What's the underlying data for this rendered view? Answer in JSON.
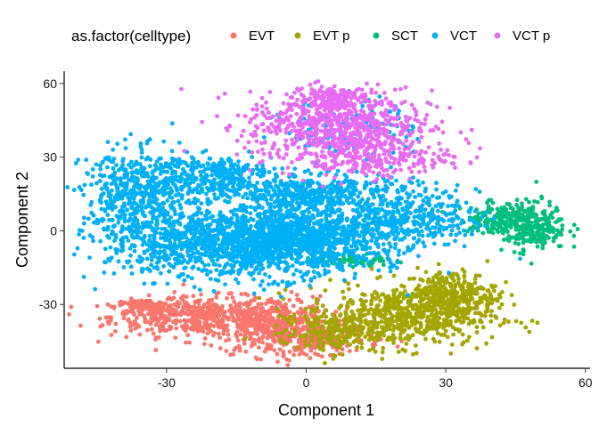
{
  "chart_data": {
    "type": "scatter",
    "title": "",
    "xlabel": "Component 1",
    "ylabel": "Component 2",
    "xlim": [
      -52,
      61
    ],
    "ylim": [
      -56,
      65
    ],
    "xticks": [
      -30,
      0,
      30,
      60
    ],
    "yticks": [
      -30,
      0,
      30,
      60
    ],
    "xtick_labels": [
      "-30",
      "0",
      "30",
      "60"
    ],
    "ytick_labels": [
      "-30",
      "0",
      "30",
      "60"
    ],
    "grid": false,
    "legend": {
      "title": "as.factor(celltype)",
      "position": "top",
      "entries": [
        "EVT",
        "EVT p",
        "SCT",
        "VCT",
        "VCT p"
      ]
    },
    "series": [
      {
        "name": "EVT",
        "color": "#F8766D",
        "clusters": [
          {
            "cx": -22,
            "cy": -35,
            "sx": 10,
            "sy": 4,
            "n": 500
          },
          {
            "cx": -35,
            "cy": -31,
            "sx": 3,
            "sy": 1.5,
            "n": 120
          },
          {
            "cx": -7,
            "cy": -39,
            "sx": 6,
            "sy": 6,
            "n": 400
          },
          {
            "cx": 4,
            "cy": -44,
            "sx": 6,
            "sy": 3,
            "n": 150
          }
        ]
      },
      {
        "name": "EVT p",
        "color": "#A3A500",
        "clusters": [
          {
            "cx": 20,
            "cy": -35,
            "sx": 10,
            "sy": 6,
            "n": 600
          },
          {
            "cx": 31,
            "cy": -26,
            "sx": 5,
            "sy": 5,
            "n": 300
          },
          {
            "cx": 5,
            "cy": -42,
            "sx": 5,
            "sy": 4,
            "n": 150
          }
        ]
      },
      {
        "name": "SCT",
        "color": "#00BF7D",
        "clusters": [
          {
            "cx": 48,
            "cy": 2,
            "sx": 4,
            "sy": 5,
            "n": 260
          },
          {
            "cx": 41,
            "cy": 5,
            "sx": 4,
            "sy": 3,
            "n": 120
          },
          {
            "cx": 10,
            "cy": -12,
            "sx": 4,
            "sy": 1.5,
            "n": 60
          }
        ]
      },
      {
        "name": "VCT",
        "color": "#00B0F6",
        "clusters": [
          {
            "cx": -14,
            "cy": -5,
            "sx": 14,
            "sy": 7,
            "n": 1400
          },
          {
            "cx": 0,
            "cy": -2,
            "sx": 10,
            "sy": 6,
            "n": 700
          },
          {
            "cx": -36,
            "cy": 14,
            "sx": 6,
            "sy": 9,
            "n": 500
          },
          {
            "cx": -21,
            "cy": 23,
            "sx": 7,
            "sy": 4,
            "n": 300
          },
          {
            "cx": 2,
            "cy": 15,
            "sx": 11,
            "sy": 4,
            "n": 500
          },
          {
            "cx": 23,
            "cy": 5,
            "sx": 7,
            "sy": 5,
            "n": 280
          },
          {
            "cx": 10,
            "cy": 42,
            "sx": 7,
            "sy": 6,
            "n": 120
          }
        ]
      },
      {
        "name": "VCT p",
        "color": "#E76BF3",
        "clusters": [
          {
            "cx": 7,
            "cy": 43,
            "sx": 10,
            "sy": 7,
            "n": 650
          },
          {
            "cx": 13,
            "cy": 30,
            "sx": 9,
            "sy": 4,
            "n": 250
          },
          {
            "cx": 5,
            "cy": 54,
            "sx": 4,
            "sy": 3,
            "n": 120
          }
        ]
      }
    ]
  }
}
